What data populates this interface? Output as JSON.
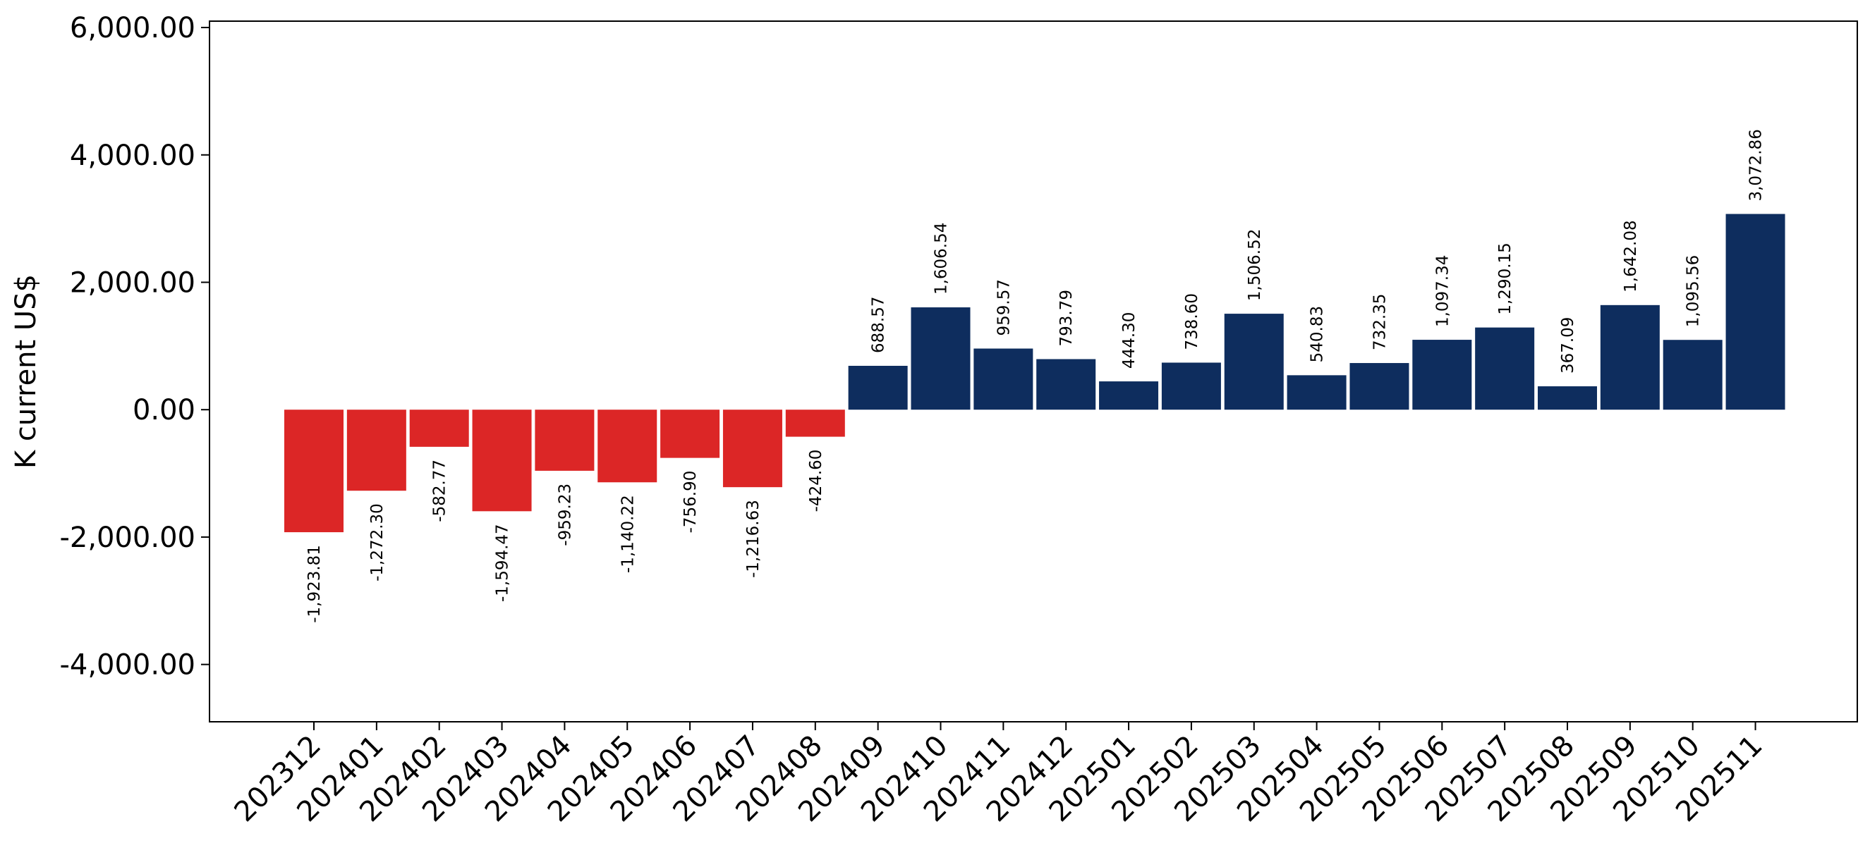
{
  "chart_data": {
    "type": "bar",
    "title": "",
    "xlabel": "",
    "ylabel": "K current US$",
    "ylim": [
      -4900,
      6100
    ],
    "yticks": [
      -4000,
      -2000,
      0,
      2000,
      4000,
      6000
    ],
    "ytick_labels": [
      "-4,000.00",
      "-2,000.00",
      "0.00",
      "2,000.00",
      "4,000.00",
      "6,000.00"
    ],
    "grid": false,
    "categories": [
      "202312",
      "202401",
      "202402",
      "202403",
      "202404",
      "202405",
      "202406",
      "202407",
      "202408",
      "202409",
      "202410",
      "202411",
      "202412",
      "202501",
      "202502",
      "202503",
      "202504",
      "202505",
      "202506",
      "202507",
      "202508",
      "202509",
      "202510",
      "202511"
    ],
    "values": [
      -1923.81,
      -1272.3,
      -582.77,
      -1594.47,
      -959.23,
      -1140.22,
      -756.9,
      -1216.63,
      -424.6,
      688.57,
      1606.54,
      959.57,
      793.79,
      444.3,
      738.6,
      1506.52,
      540.83,
      732.35,
      1097.34,
      1290.15,
      367.09,
      1642.08,
      1095.56,
      3072.86
    ],
    "value_labels": [
      "-1,923.81",
      "-1,272.30",
      "-582.77",
      "-1,594.47",
      "-959.23",
      "-1,140.22",
      "-756.90",
      "-1,216.63",
      "-424.60",
      "688.57",
      "1,606.54",
      "959.57",
      "793.79",
      "444.30",
      "738.60",
      "1,506.52",
      "540.83",
      "732.35",
      "1,097.34",
      "1,290.15",
      "367.09",
      "1,642.08",
      "1,095.56",
      "3,072.86"
    ],
    "colors": {
      "positive": "#0e2d5e",
      "negative": "#dc2626"
    }
  }
}
